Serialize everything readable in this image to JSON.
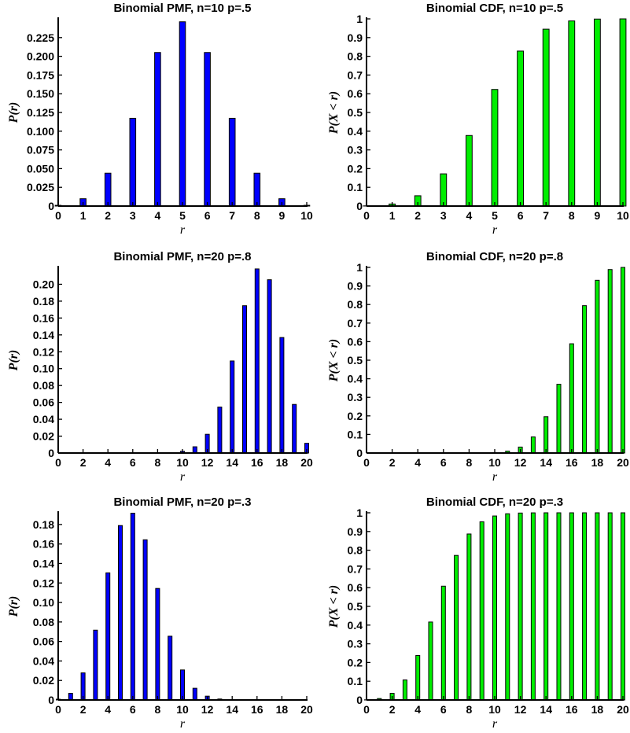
{
  "chart_data": [
    {
      "type": "bar",
      "title": "Binomial PMF, n=10 p=.5",
      "xlabel": "r",
      "ylabel": "P(r)",
      "color": "#0000ff",
      "xlim": [
        0,
        10
      ],
      "ylim": [
        0,
        0.25
      ],
      "xticks": [
        "0",
        "1",
        "2",
        "3",
        "4",
        "5",
        "6",
        "7",
        "8",
        "9",
        "10"
      ],
      "yticks": [
        "0",
        "0.025",
        "0.050",
        "0.075",
        "0.100",
        "0.125",
        "0.150",
        "0.175",
        "0.200",
        "0.225"
      ],
      "x": [
        0,
        1,
        2,
        3,
        4,
        5,
        6,
        7,
        8,
        9,
        10
      ],
      "values": [
        0.001,
        0.0098,
        0.0439,
        0.1172,
        0.2051,
        0.2461,
        0.2051,
        0.1172,
        0.0439,
        0.0098,
        0.001
      ]
    },
    {
      "type": "bar",
      "title": "Binomial CDF, n=10 p=.5",
      "xlabel": "r",
      "ylabel": "P(X < r)",
      "color": "#00ee00",
      "xlim": [
        0,
        10
      ],
      "ylim": [
        0,
        1
      ],
      "xticks": [
        "0",
        "1",
        "2",
        "3",
        "4",
        "5",
        "6",
        "7",
        "8",
        "9",
        "10"
      ],
      "yticks": [
        "0",
        "0.1",
        "0.2",
        "0.3",
        "0.4",
        "0.5",
        "0.6",
        "0.7",
        "0.8",
        "0.9",
        "1"
      ],
      "x": [
        0,
        1,
        2,
        3,
        4,
        5,
        6,
        7,
        8,
        9,
        10
      ],
      "values": [
        0.001,
        0.011,
        0.055,
        0.172,
        0.377,
        0.623,
        0.828,
        0.945,
        0.989,
        0.999,
        1.0
      ]
    },
    {
      "type": "bar",
      "title": "Binomial PMF, n=20 p=.8",
      "xlabel": "r",
      "ylabel": "P(r)",
      "color": "#0000ff",
      "xlim": [
        0,
        20
      ],
      "ylim": [
        0,
        0.22
      ],
      "xticks": [
        "0",
        "2",
        "4",
        "6",
        "8",
        "10",
        "12",
        "14",
        "16",
        "18",
        "20"
      ],
      "yticks": [
        "0",
        "0.02",
        "0.04",
        "0.06",
        "0.08",
        "0.10",
        "0.12",
        "0.14",
        "0.16",
        "0.18",
        "0.20"
      ],
      "x": [
        0,
        1,
        2,
        3,
        4,
        5,
        6,
        7,
        8,
        9,
        10,
        11,
        12,
        13,
        14,
        15,
        16,
        17,
        18,
        19,
        20
      ],
      "values": [
        0,
        0,
        0,
        0,
        0,
        0,
        0,
        0.0001,
        0.0001,
        0.0005,
        0.002,
        0.0074,
        0.0222,
        0.0545,
        0.1091,
        0.1746,
        0.2182,
        0.2054,
        0.1369,
        0.0576,
        0.0115
      ]
    },
    {
      "type": "bar",
      "title": "Binomial CDF, n=20 p=.8",
      "xlabel": "r",
      "ylabel": "P(X < r)",
      "color": "#00ee00",
      "xlim": [
        0,
        20
      ],
      "ylim": [
        0,
        1
      ],
      "xticks": [
        "0",
        "2",
        "4",
        "6",
        "8",
        "10",
        "12",
        "14",
        "16",
        "18",
        "20"
      ],
      "yticks": [
        "0",
        "0.1",
        "0.2",
        "0.3",
        "0.4",
        "0.5",
        "0.6",
        "0.7",
        "0.8",
        "0.9",
        "1"
      ],
      "x": [
        0,
        1,
        2,
        3,
        4,
        5,
        6,
        7,
        8,
        9,
        10,
        11,
        12,
        13,
        14,
        15,
        16,
        17,
        18,
        19,
        20
      ],
      "values": [
        0,
        0,
        0,
        0,
        0,
        0,
        0,
        0.0001,
        0.0001,
        0.0006,
        0.0026,
        0.01,
        0.0321,
        0.0867,
        0.1958,
        0.3704,
        0.5886,
        0.7939,
        0.9308,
        0.9885,
        1.0
      ]
    },
    {
      "type": "bar",
      "title": "Binomial PMF, n=20 p=.3",
      "xlabel": "r",
      "ylabel": "P(r)",
      "color": "#0000ff",
      "xlim": [
        0,
        20
      ],
      "ylim": [
        0,
        0.192
      ],
      "xticks": [
        "0",
        "2",
        "4",
        "6",
        "8",
        "10",
        "12",
        "14",
        "16",
        "18",
        "20"
      ],
      "yticks": [
        "0",
        "0.02",
        "0.04",
        "0.06",
        "0.08",
        "0.10",
        "0.12",
        "0.14",
        "0.16",
        "0.18"
      ],
      "x": [
        0,
        1,
        2,
        3,
        4,
        5,
        6,
        7,
        8,
        9,
        10,
        11,
        12,
        13,
        14,
        15,
        16,
        17,
        18,
        19,
        20
      ],
      "values": [
        0.0008,
        0.0068,
        0.0278,
        0.0716,
        0.1304,
        0.1789,
        0.1916,
        0.1643,
        0.1144,
        0.0654,
        0.0308,
        0.012,
        0.0039,
        0.001,
        0.0002,
        0,
        0,
        0,
        0,
        0,
        0
      ]
    },
    {
      "type": "bar",
      "title": "Binomial CDF, n=20 p=.3",
      "xlabel": "r",
      "ylabel": "P(X < r)",
      "color": "#00ee00",
      "xlim": [
        0,
        20
      ],
      "ylim": [
        0,
        1
      ],
      "xticks": [
        "0",
        "2",
        "4",
        "6",
        "8",
        "10",
        "12",
        "14",
        "16",
        "18",
        "20"
      ],
      "yticks": [
        "0",
        "0.1",
        "0.2",
        "0.3",
        "0.4",
        "0.5",
        "0.6",
        "0.7",
        "0.8",
        "0.9",
        "1"
      ],
      "x": [
        0,
        1,
        2,
        3,
        4,
        5,
        6,
        7,
        8,
        9,
        10,
        11,
        12,
        13,
        14,
        15,
        16,
        17,
        18,
        19,
        20
      ],
      "values": [
        0.0008,
        0.0076,
        0.0355,
        0.1071,
        0.2375,
        0.4164,
        0.608,
        0.7723,
        0.8867,
        0.952,
        0.9829,
        0.9949,
        0.9987,
        0.9997,
        1.0,
        1.0,
        1.0,
        1.0,
        1.0,
        1.0,
        1.0
      ]
    }
  ]
}
